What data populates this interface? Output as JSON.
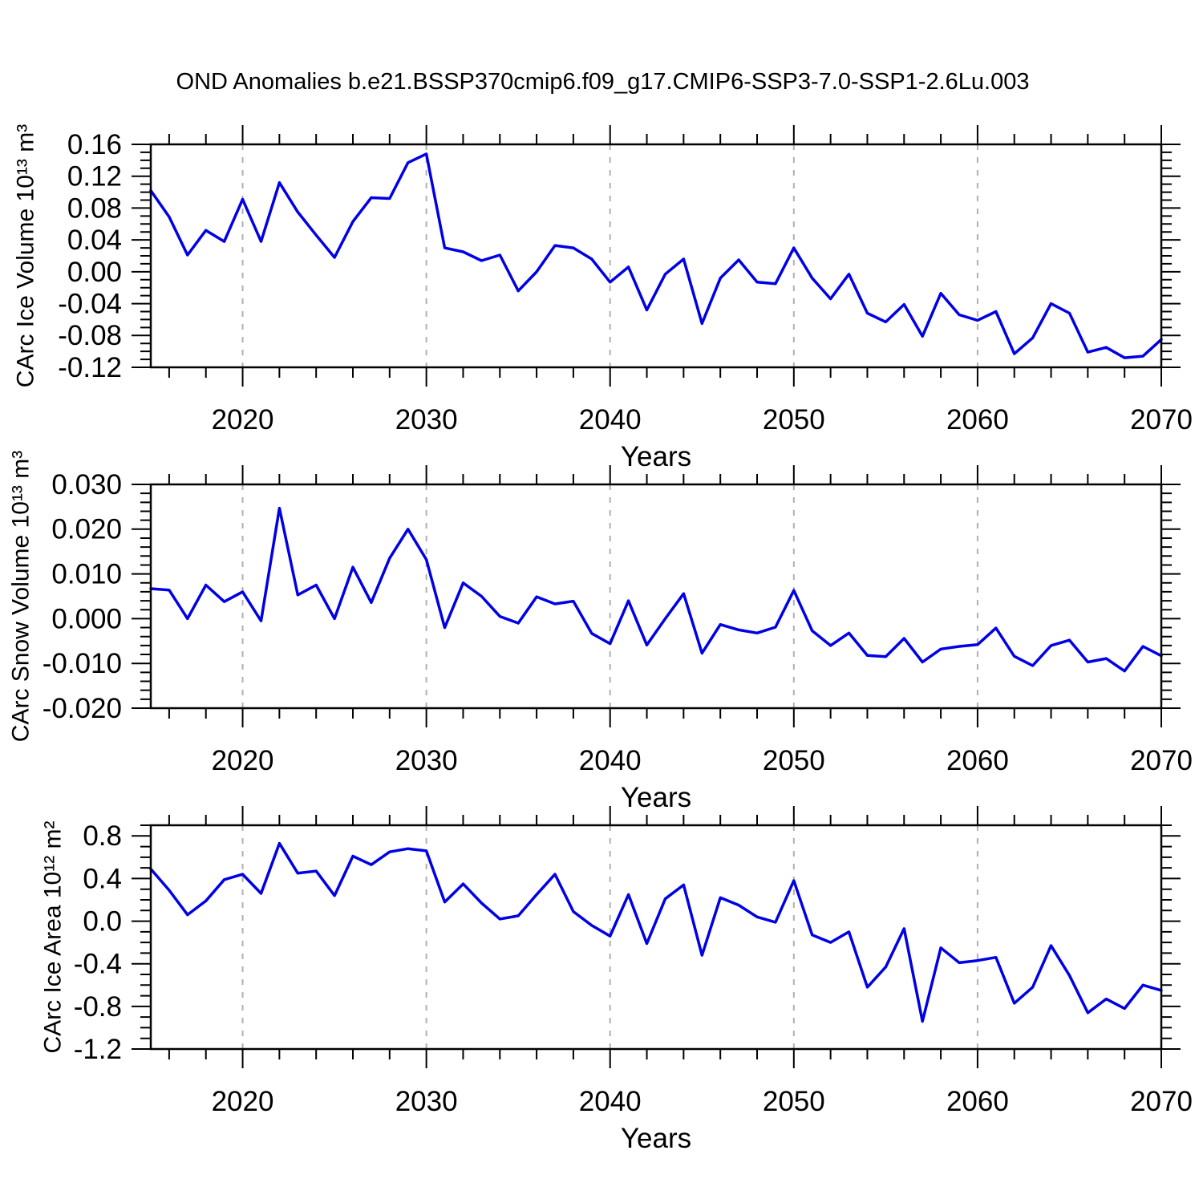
{
  "title": "OND Anomalies b.e21.BSSP370cmip6.f09_g17.CMIP6-SSP3-7.0-SSP1-2.6Lu.003",
  "colors": {
    "line": "#0000e6",
    "grid": "#b0b0b0",
    "axis": "#000000",
    "text": "#000000",
    "background": "#ffffff"
  },
  "chart_data": {
    "type": "line",
    "title": "OND Anomalies b.e21.BSSP370cmip6.f09_g17.CMIP6-SSP3-7.0-SSP1-2.6Lu.003",
    "xlabel": "Years",
    "x_range": [
      2015,
      2070
    ],
    "x_major_ticks": [
      2020,
      2030,
      2040,
      2050,
      2060,
      2070
    ],
    "x_major_tick_labels": [
      "2020",
      "2030",
      "2040",
      "2050",
      "2060",
      "2070"
    ],
    "x_minor_step": 2,
    "gridlines_x": [
      2020,
      2030,
      2040,
      2050,
      2060
    ],
    "grid_style": "vertical-dashed",
    "legend": "none",
    "x": [
      2015,
      2016,
      2017,
      2018,
      2019,
      2020,
      2021,
      2022,
      2023,
      2024,
      2025,
      2026,
      2027,
      2028,
      2029,
      2030,
      2031,
      2032,
      2033,
      2034,
      2035,
      2036,
      2037,
      2038,
      2039,
      2040,
      2041,
      2042,
      2043,
      2044,
      2045,
      2046,
      2047,
      2048,
      2049,
      2050,
      2051,
      2052,
      2053,
      2054,
      2055,
      2056,
      2057,
      2058,
      2059,
      2060,
      2061,
      2062,
      2063,
      2064,
      2065,
      2066,
      2067,
      2068,
      2069,
      2070
    ],
    "panels": [
      {
        "name": "ice-volume",
        "ylabel": "CArc Ice Volume 10¹³ m³",
        "ylim": [
          -0.12,
          0.16
        ],
        "ytick_values": [
          0.16,
          0.12,
          0.08,
          0.04,
          0.0,
          -0.04,
          -0.08,
          -0.12
        ],
        "ytick_labels": [
          "0.16",
          "0.12",
          "0.08",
          "0.04",
          "0.00",
          "-0.04",
          "-0.08",
          "-0.12"
        ],
        "y_minor_step": 0.01,
        "values": [
          0.102,
          0.069,
          0.021,
          0.052,
          0.038,
          0.091,
          0.038,
          0.112,
          0.075,
          0.046,
          0.018,
          0.063,
          0.093,
          0.092,
          0.137,
          0.148,
          0.03,
          0.025,
          0.014,
          0.021,
          -0.024,
          0.0,
          0.033,
          0.03,
          0.016,
          -0.013,
          0.006,
          -0.048,
          -0.003,
          0.016,
          -0.065,
          -0.008,
          0.015,
          -0.013,
          -0.015,
          0.03,
          -0.008,
          -0.034,
          -0.003,
          -0.052,
          -0.063,
          -0.041,
          -0.081,
          -0.027,
          -0.054,
          -0.061,
          -0.05,
          -0.103,
          -0.083,
          -0.04,
          -0.052,
          -0.101,
          -0.095,
          -0.108,
          -0.106,
          -0.085
        ]
      },
      {
        "name": "snow-volume",
        "ylabel": "CArc Snow Volume 10¹³ m³",
        "ylim": [
          -0.02,
          0.03
        ],
        "ytick_values": [
          0.03,
          0.02,
          0.01,
          0.0,
          -0.01,
          -0.02
        ],
        "ytick_labels": [
          "0.030",
          "0.020",
          "0.010",
          "0.000",
          "-0.010",
          "-0.020"
        ],
        "y_minor_step": 0.002,
        "values": [
          0.0067,
          0.0064,
          0.0,
          0.0075,
          0.0038,
          0.006,
          -0.0005,
          0.0247,
          0.0053,
          0.0075,
          0.0,
          0.0115,
          0.0036,
          0.0135,
          0.02,
          0.0132,
          -0.002,
          0.008,
          0.005,
          0.0005,
          -0.001,
          0.0049,
          0.0033,
          0.0039,
          -0.0033,
          -0.0056,
          0.004,
          -0.0059,
          0.0,
          0.0056,
          -0.0077,
          -0.0013,
          -0.0025,
          -0.0032,
          -0.0019,
          0.0063,
          -0.0027,
          -0.006,
          -0.0032,
          -0.0082,
          -0.0085,
          -0.0044,
          -0.0097,
          -0.0068,
          -0.0062,
          -0.0058,
          -0.0021,
          -0.0084,
          -0.0105,
          -0.006,
          -0.0048,
          -0.0097,
          -0.0089,
          -0.0117,
          -0.0062,
          -0.0083
        ]
      },
      {
        "name": "ice-area",
        "ylabel": "CArc Ice Area 10¹² m²",
        "ylim": [
          -1.2,
          0.9
        ],
        "ytick_values": [
          0.8,
          0.4,
          0.0,
          -0.4,
          -0.8,
          -1.2
        ],
        "ytick_labels": [
          "0.8",
          "0.4",
          "0.0",
          "-0.4",
          "-0.8",
          "-1.2"
        ],
        "y_minor_step": 0.1,
        "values": [
          0.49,
          0.29,
          0.06,
          0.19,
          0.39,
          0.44,
          0.26,
          0.73,
          0.45,
          0.47,
          0.24,
          0.61,
          0.53,
          0.65,
          0.68,
          0.66,
          0.18,
          0.35,
          0.17,
          0.02,
          0.05,
          0.25,
          0.44,
          0.09,
          -0.04,
          -0.14,
          0.25,
          -0.21,
          0.21,
          0.34,
          -0.32,
          0.22,
          0.15,
          0.04,
          -0.01,
          0.38,
          -0.13,
          -0.2,
          -0.1,
          -0.62,
          -0.43,
          -0.07,
          -0.94,
          -0.25,
          -0.39,
          -0.37,
          -0.34,
          -0.77,
          -0.62,
          -0.23,
          -0.51,
          -0.86,
          -0.73,
          -0.82,
          -0.6,
          -0.65
        ]
      }
    ]
  }
}
